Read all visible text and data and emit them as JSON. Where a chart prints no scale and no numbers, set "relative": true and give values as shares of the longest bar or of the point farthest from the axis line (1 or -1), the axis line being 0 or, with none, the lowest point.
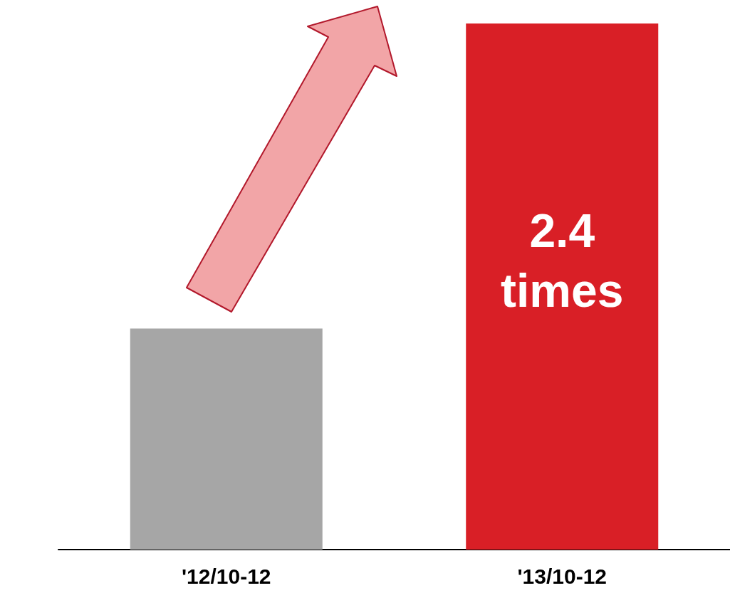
{
  "chart_data": {
    "type": "bar",
    "relative": true,
    "categories": [
      "'12/10-12",
      "'13/10-12"
    ],
    "values": [
      0.42,
      1
    ],
    "colors": [
      "#a6a6a6",
      "#d91f26"
    ],
    "annotations": [
      "2.4 times"
    ]
  }
}
